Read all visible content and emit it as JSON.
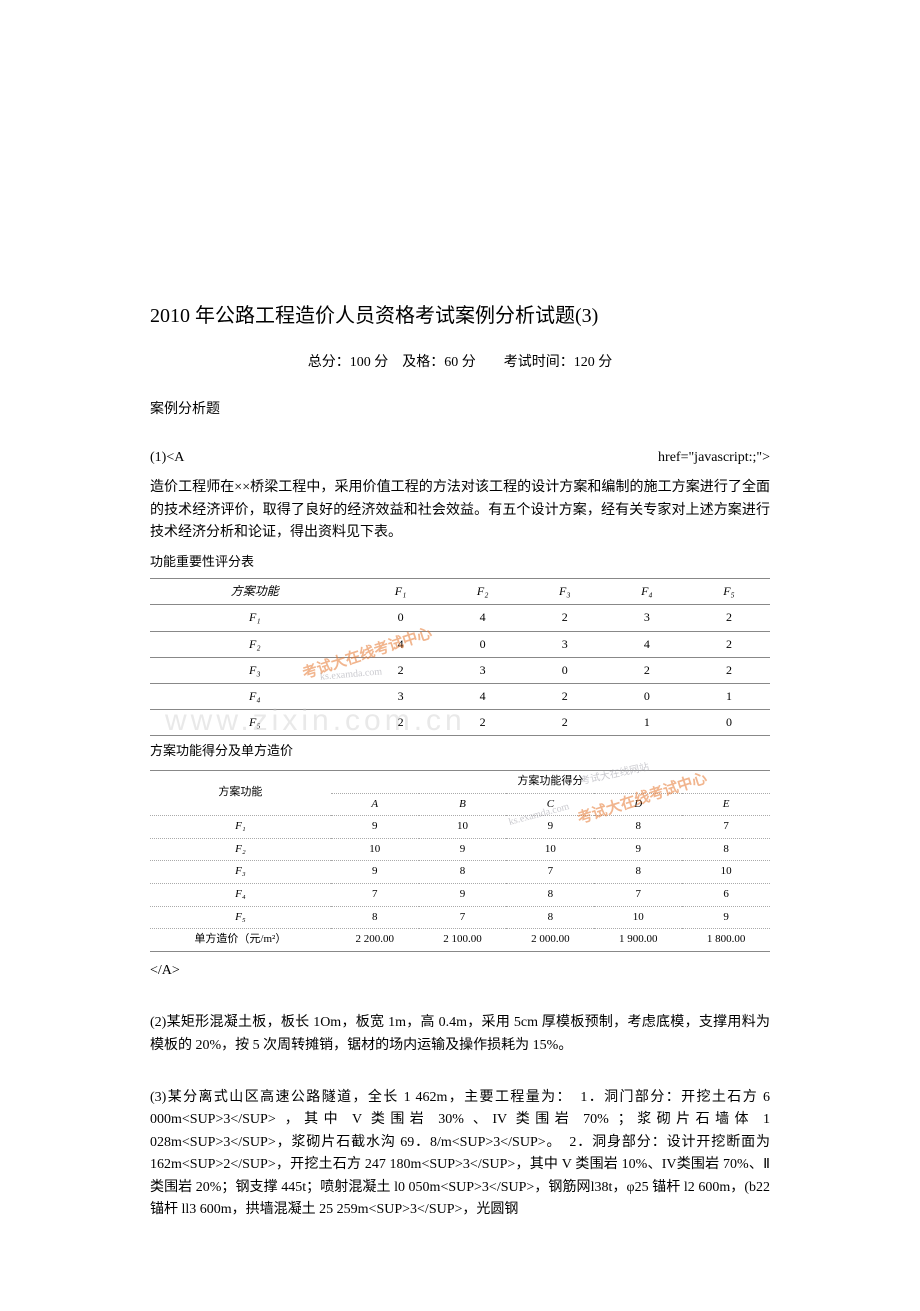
{
  "title": "2010 年公路工程造价人员资格考试案例分析试题(3)",
  "subtitle": "总分：100 分　及格：60 分　　考试时间：120 分",
  "section_label": "案例分析题",
  "q1": {
    "line1_left": "(1)<A",
    "line1_right": "href=\"javascript:;\">",
    "intro": "造价工程师在××桥梁工程中，采用价值工程的方法对该工程的设计方案和编制的施工方案进行了全面的技术经济评价，取得了良好的经济效益和社会效益。有五个设计方案，经有关专家对上述方案进行技术经济分析和论证，得出资料见下表。",
    "table1_title": "功能重要性评分表",
    "table1": {
      "header_label": "方案功能",
      "headers": [
        "F₁",
        "F₂",
        "F₃",
        "F₄",
        "F₅"
      ],
      "rows": [
        {
          "label": "F₁",
          "cells": [
            "0",
            "4",
            "2",
            "3",
            "2"
          ]
        },
        {
          "label": "F₂",
          "cells": [
            "4",
            "0",
            "3",
            "4",
            "2"
          ]
        },
        {
          "label": "F₃",
          "cells": [
            "2",
            "3",
            "0",
            "2",
            "2"
          ]
        },
        {
          "label": "F₄",
          "cells": [
            "3",
            "4",
            "2",
            "0",
            "1"
          ]
        },
        {
          "label": "F₅",
          "cells": [
            "2",
            "2",
            "2",
            "1",
            "0"
          ]
        }
      ]
    },
    "table2_title": "方案功能得分及单方造价",
    "table2": {
      "top_header": "方案功能",
      "score_header": "方案功能得分",
      "cols": [
        "A",
        "B",
        "C",
        "D",
        "E"
      ],
      "rows": [
        {
          "label": "F₁",
          "cells": [
            "9",
            "10",
            "9",
            "8",
            "7"
          ]
        },
        {
          "label": "F₂",
          "cells": [
            "10",
            "9",
            "10",
            "9",
            "8"
          ]
        },
        {
          "label": "F₃",
          "cells": [
            "9",
            "8",
            "7",
            "8",
            "10"
          ]
        },
        {
          "label": "F₄",
          "cells": [
            "7",
            "9",
            "8",
            "7",
            "6"
          ]
        },
        {
          "label": "F₅",
          "cells": [
            "8",
            "7",
            "8",
            "10",
            "9"
          ]
        }
      ],
      "price_label": "单方造价（元/m²）",
      "price_cells": [
        "2 200.00",
        "2 100.00",
        "2 000.00",
        "1 900.00",
        "1 800.00"
      ]
    },
    "closing": "</A>"
  },
  "q2": "(2)某矩形混凝土板，板长 1Om，板宽 1m，高 0.4m，采用 5cm 厚模板预制，考虑底模，支撑用料为模板的 20%，按 5 次周转摊销，锯材的场内运输及操作损耗为 15%。",
  "q3": "(3)某分离式山区高速公路隧道，全长 1 462m，主要工程量为：　1．洞门部分：开挖土石方 6 000m<SUP>3</SUP> ，其中 V 类围岩 30% 、IV 类围岩 70% ；浆砌片石墙体 1 028m<SUP>3</SUP>，浆砌片石截水沟 69．8/m<SUP>3</SUP>。　2．洞身部分：设计开挖断面为 162m<SUP>2</SUP>，开挖土石方 247 180m<SUP>3</SUP>，其中 V 类围岩 10%、IV类围岩 70%、Ⅱ类围岩 20%；钢支撑 445t；喷射混凝土 l0 050m<SUP>3</SUP>，钢筋网l38t，φ25 锚杆 l2 600m，(b22 锚杆 ll3 600m，拱墙混凝土 25 259m<SUP>3</SUP>，光圆钢",
  "watermarks": {
    "main": "www.zixin.com.cn",
    "stamp": "考试大在线考试中心",
    "small_text": "考试大在线网站",
    "url": "ks.examda.com"
  }
}
